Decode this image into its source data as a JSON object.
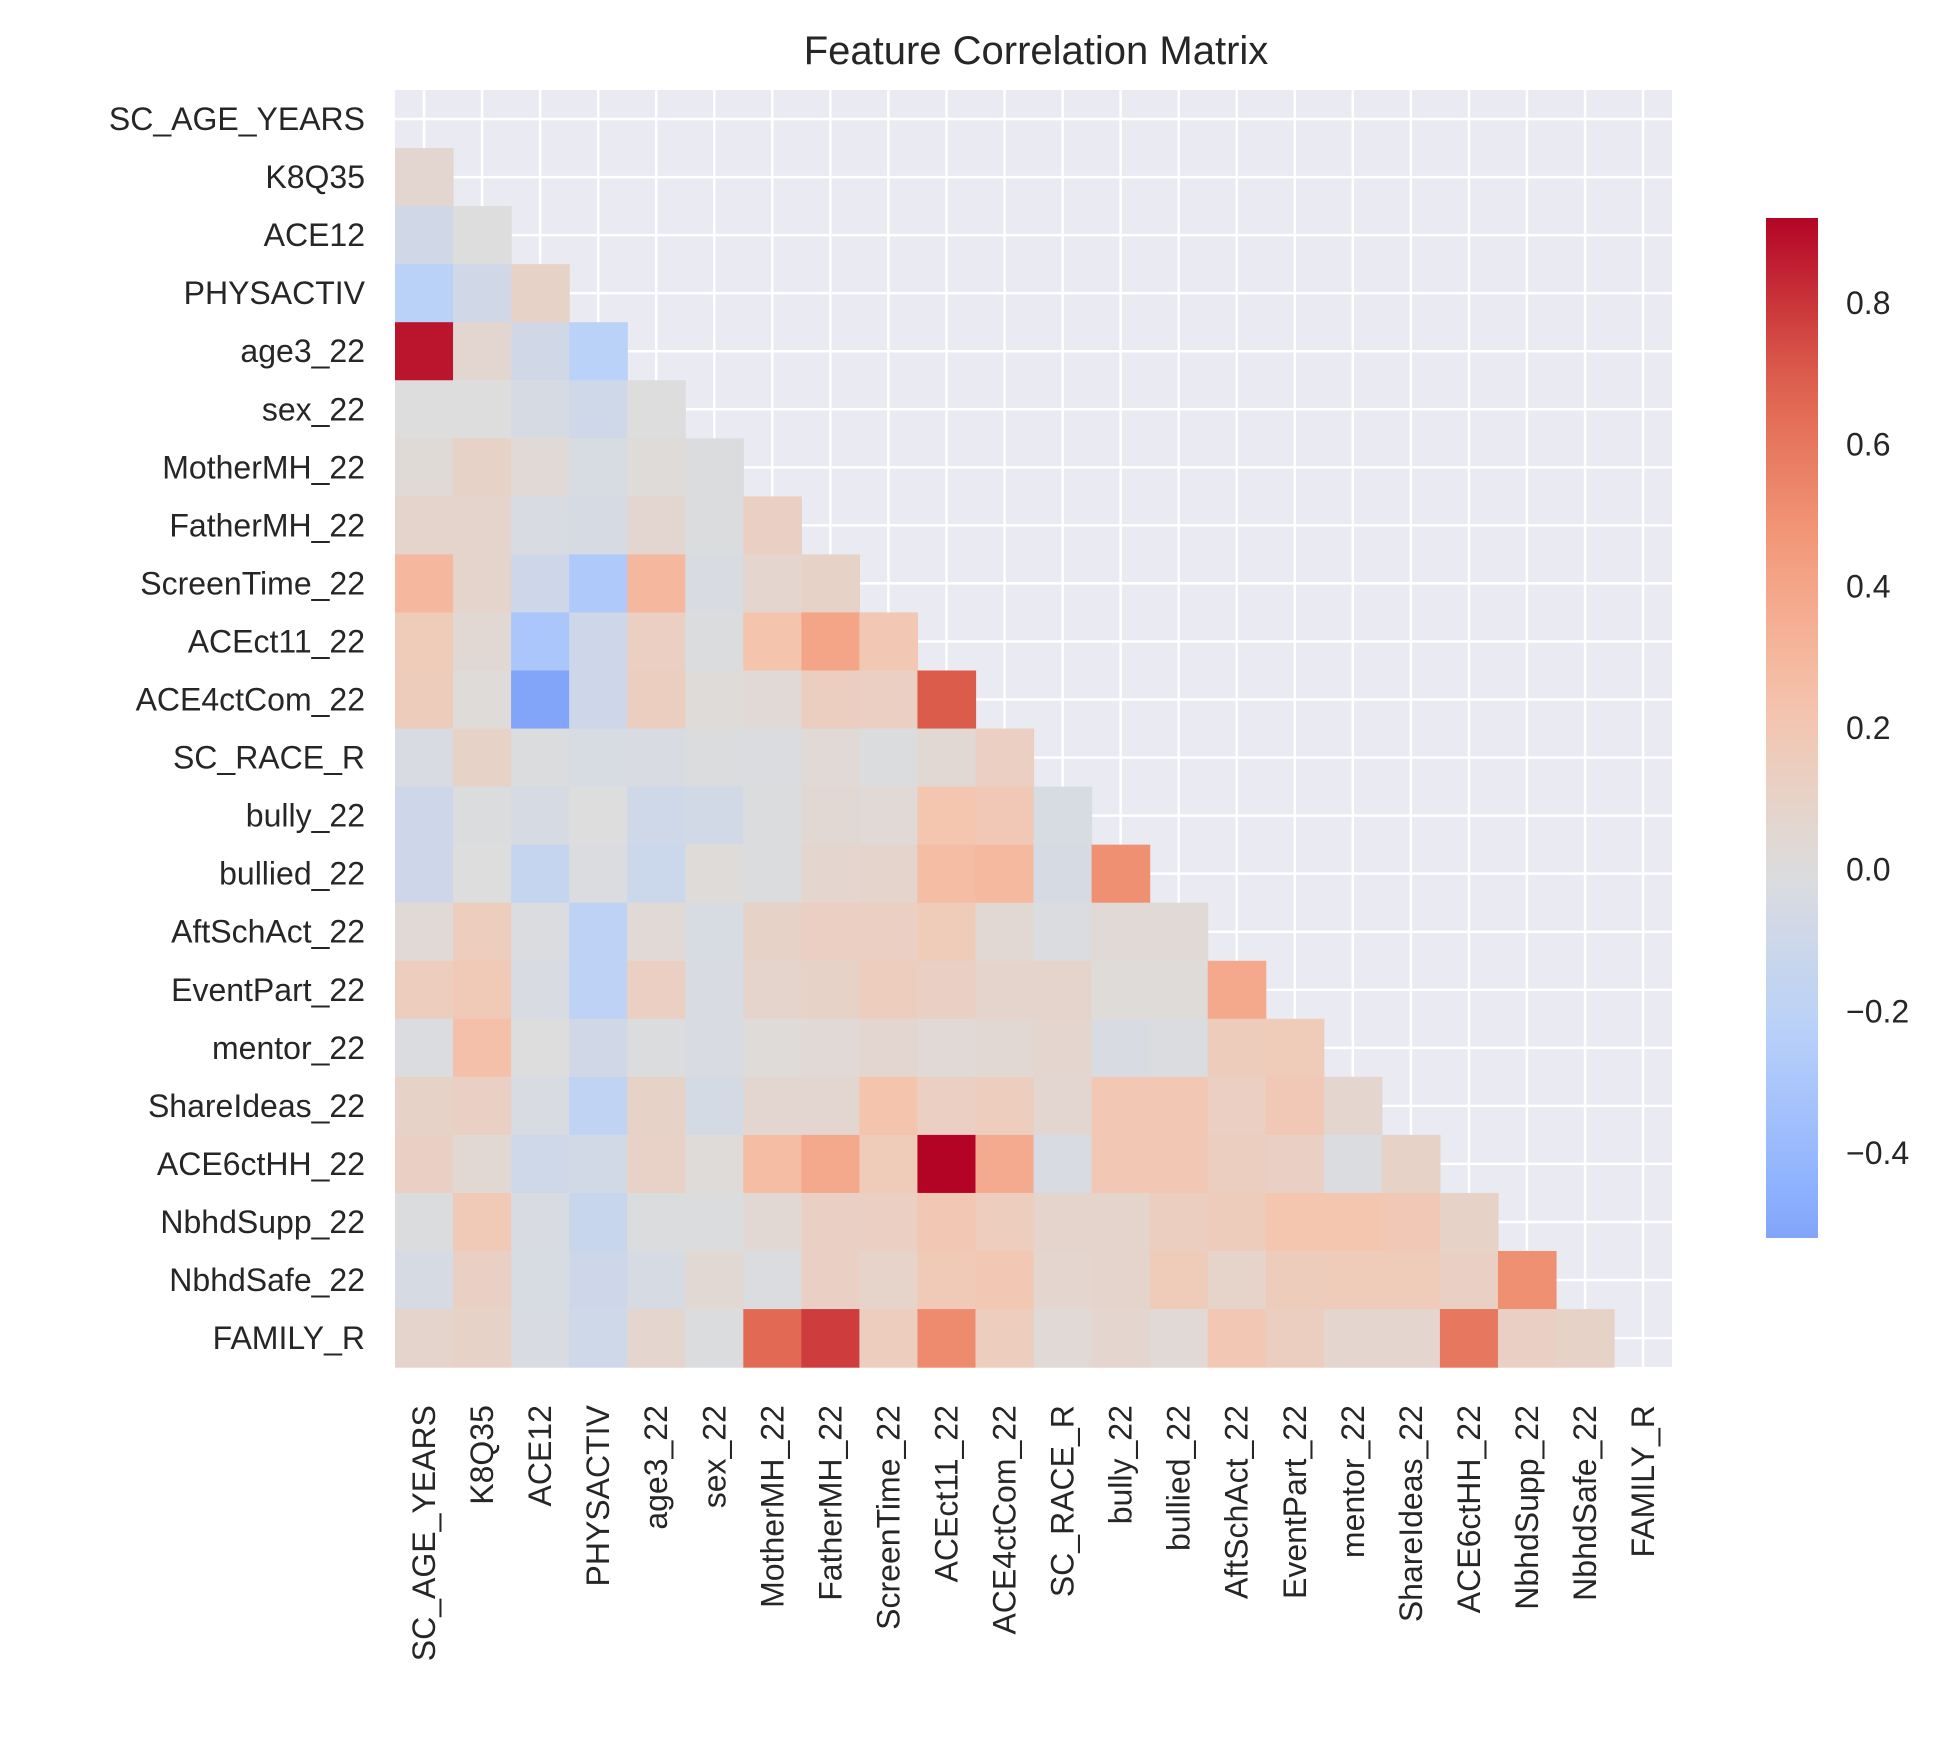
{
  "chart_data": {
    "type": "heatmap",
    "title": "Feature Correlation Matrix",
    "xlabel": "",
    "ylabel": "",
    "mask": "upper-triangle-including-diagonal",
    "labels": [
      "SC_AGE_YEARS",
      "K8Q35",
      "ACE12",
      "PHYSACTIV",
      "age3_22",
      "sex_22",
      "MotherMH_22",
      "FatherMH_22",
      "ScreenTime_22",
      "ACEct11_22",
      "ACE4ctCom_22",
      "SC_RACE_R",
      "bully_22",
      "bullied_22",
      "AftSchAct_22",
      "EventPart_22",
      "mentor_22",
      "ShareIdeas_22",
      "ACE6ctHH_22",
      "NbhdSupp_22",
      "NbhdSafe_22",
      "FAMILY_R"
    ],
    "values": [
      [],
      [
        0.06
      ],
      [
        -0.08,
        0.0
      ],
      [
        -0.22,
        -0.08,
        0.1
      ],
      [
        0.88,
        0.06,
        -0.08,
        -0.22
      ],
      [
        0.0,
        0.0,
        -0.05,
        -0.09,
        0.0
      ],
      [
        0.03,
        0.1,
        0.04,
        -0.04,
        0.02,
        -0.01
      ],
      [
        0.08,
        0.08,
        -0.03,
        -0.05,
        0.06,
        -0.01,
        0.12
      ],
      [
        0.3,
        0.08,
        -0.1,
        -0.28,
        0.3,
        -0.03,
        0.07,
        0.1
      ],
      [
        0.17,
        0.05,
        -0.3,
        -0.1,
        0.13,
        -0.01,
        0.23,
        0.4,
        0.2
      ],
      [
        0.16,
        0.02,
        -0.52,
        -0.1,
        0.14,
        0.02,
        0.04,
        0.14,
        0.13,
        0.7
      ],
      [
        -0.03,
        0.1,
        -0.01,
        -0.04,
        -0.03,
        -0.01,
        -0.02,
        0.04,
        -0.01,
        0.05,
        0.13
      ],
      [
        -0.1,
        -0.01,
        -0.05,
        0.0,
        -0.09,
        -0.07,
        -0.01,
        0.05,
        0.04,
        0.22,
        0.19,
        -0.04
      ],
      [
        -0.1,
        0.0,
        -0.15,
        -0.02,
        -0.11,
        0.02,
        -0.01,
        0.07,
        0.08,
        0.27,
        0.29,
        -0.05,
        0.5
      ],
      [
        0.04,
        0.15,
        -0.02,
        -0.2,
        0.04,
        -0.04,
        0.1,
        0.13,
        0.13,
        0.17,
        0.05,
        -0.02,
        0.04,
        0.04
      ],
      [
        0.15,
        0.18,
        -0.03,
        -0.2,
        0.13,
        -0.03,
        0.08,
        0.1,
        0.15,
        0.12,
        0.08,
        0.08,
        0.02,
        0.02,
        0.38
      ],
      [
        -0.02,
        0.25,
        0.0,
        -0.08,
        -0.01,
        -0.03,
        0.02,
        0.04,
        0.06,
        0.04,
        0.05,
        0.07,
        -0.03,
        -0.02,
        0.16,
        0.17
      ],
      [
        0.1,
        0.12,
        -0.03,
        -0.18,
        0.1,
        -0.06,
        0.06,
        0.06,
        0.23,
        0.13,
        0.15,
        0.06,
        0.2,
        0.2,
        0.13,
        0.19,
        0.07
      ],
      [
        0.12,
        0.05,
        -0.09,
        -0.07,
        0.11,
        0.02,
        0.27,
        0.38,
        0.17,
        0.92,
        0.37,
        -0.03,
        0.2,
        0.2,
        0.14,
        0.12,
        -0.02,
        0.1
      ],
      [
        -0.01,
        0.18,
        -0.03,
        -0.13,
        -0.01,
        -0.01,
        0.05,
        0.12,
        0.13,
        0.2,
        0.15,
        0.08,
        0.08,
        0.14,
        0.16,
        0.22,
        0.22,
        0.19,
        0.1
      ],
      [
        -0.05,
        0.12,
        -0.04,
        -0.1,
        -0.05,
        0.05,
        -0.02,
        0.12,
        0.09,
        0.18,
        0.2,
        0.07,
        0.08,
        0.17,
        0.09,
        0.16,
        0.17,
        0.17,
        0.12,
        0.5
      ],
      [
        0.08,
        0.1,
        -0.03,
        -0.09,
        0.07,
        -0.01,
        0.65,
        0.78,
        0.15,
        0.52,
        0.15,
        0.04,
        0.07,
        0.04,
        0.2,
        0.14,
        0.07,
        0.07,
        0.6,
        0.12,
        0.1
      ]
    ],
    "colorbar": {
      "min": -0.52,
      "max": 0.92,
      "ticks": [
        -0.4,
        -0.2,
        0.0,
        0.2,
        0.4,
        0.6,
        0.8
      ]
    },
    "colormap": "coolwarm",
    "grid": true,
    "colors": {
      "panel_bg": "#eaeaf2",
      "grid": "#ffffff",
      "text": "#262626"
    }
  }
}
